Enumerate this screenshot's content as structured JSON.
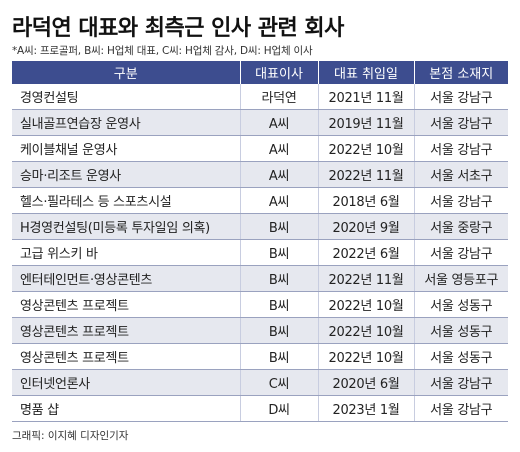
{
  "title": "라덕연 대표와 최측근 인사 관련 회사",
  "subtitle": "*A씨: 프로골퍼, B씨: H업체 대표, C씨: H업체 감사, D씨: H업체 이사",
  "table": {
    "headers": [
      "구분",
      "대표이사",
      "대표 취임일",
      "본점 소재지"
    ],
    "rows": [
      {
        "company": "경영컨설팅",
        "ceo": "라덕연",
        "date": "2021년 11월",
        "location": "서울 강남구"
      },
      {
        "company": "실내골프연습장 운영사",
        "ceo": "A씨",
        "date": "2019년 11월",
        "location": "서울 강남구"
      },
      {
        "company": "케이블채널 운영사",
        "ceo": "A씨",
        "date": "2022년 10월",
        "location": "서울 강남구"
      },
      {
        "company": "승마·리조트 운영사",
        "ceo": "A씨",
        "date": "2022년 11월",
        "location": "서울 서초구"
      },
      {
        "company": "헬스·필라테스 등 스포츠시설",
        "ceo": "A씨",
        "date": "2018년 6월",
        "location": "서울 강남구"
      },
      {
        "company": "H경영컨설팅(미등록 투자일임 의혹)",
        "ceo": "B씨",
        "date": "2020년 9월",
        "location": "서울 중랑구"
      },
      {
        "company": "고급 위스키 바",
        "ceo": "B씨",
        "date": "2022년 6월",
        "location": "서울 강남구"
      },
      {
        "company": "엔터테인먼트·영상콘텐츠",
        "ceo": "B씨",
        "date": "2022년 11월",
        "location": "서울 영등포구"
      },
      {
        "company": "영상콘텐츠 프로젝트",
        "ceo": "B씨",
        "date": "2022년 10월",
        "location": "서울 성동구"
      },
      {
        "company": "영상콘텐츠 프로젝트",
        "ceo": "B씨",
        "date": "2022년 10월",
        "location": "서울 성동구"
      },
      {
        "company": "영상콘텐츠 프로젝트",
        "ceo": "B씨",
        "date": "2022년 10월",
        "location": "서울 성동구"
      },
      {
        "company": "인터넷언론사",
        "ceo": "C씨",
        "date": "2020년 6월",
        "location": "서울 강남구"
      },
      {
        "company": "명품 샵",
        "ceo": "D씨",
        "date": "2023년 1월",
        "location": "서울 강남구"
      }
    ]
  },
  "credit": "그래픽: 이지혜 디자인기자",
  "colors": {
    "header_bg": "#3d4d8f",
    "row_shade": "#e6e8ef"
  }
}
